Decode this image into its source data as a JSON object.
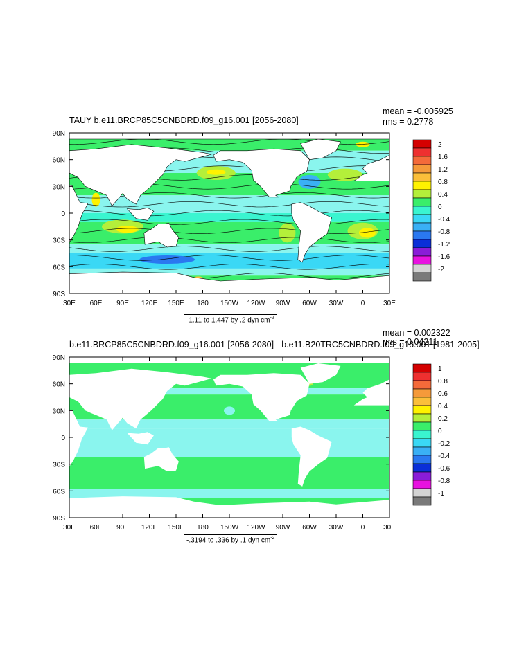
{
  "panels": [
    {
      "title": "TAUY b.e11.BRCP85C5CNBDRD.f09_g16.001 [2056-2080]",
      "mean": "mean = -0.005925",
      "rms": "rms = 0.2778",
      "range_note": "-1.11 to 1.447 by .2 dyn cm",
      "range_note_sup": "-2",
      "legend_labels": [
        "2",
        "1.6",
        "1.2",
        "0.8",
        "0.4",
        "0",
        "-0.4",
        "-0.8",
        "-1.2",
        "-1.6",
        "-2"
      ]
    },
    {
      "title": "b.e11.BRCP85C5CNBDRD.f09_g16.001 [2056-2080] - b.e11.B20TRC5CNBDRD.f09_g16.001 [1981-2005]",
      "mean": "mean = 0.002322",
      "rms": "rms = 0.04211",
      "range_note": "-.3194 to .336 by .1 dyn cm",
      "range_note_sup": "-2",
      "legend_labels": [
        "1",
        "0.8",
        "0.6",
        "0.4",
        "0.2",
        "0",
        "-0.2",
        "-0.4",
        "-0.6",
        "-0.8",
        "-1"
      ]
    }
  ],
  "chart_data": {
    "type": "heatmap",
    "x_tick_labels": [
      "30E",
      "60E",
      "90E",
      "120E",
      "150E",
      "180",
      "150W",
      "120W",
      "90W",
      "60W",
      "30W",
      "0",
      "30E"
    ],
    "y_tick_labels": [
      "90N",
      "60N",
      "30N",
      "0",
      "30S",
      "60S",
      "90S"
    ],
    "xlim": [
      30,
      390
    ],
    "ylim": [
      -90,
      90
    ],
    "colormap": [
      "#d40000",
      "#ee3030",
      "#f46a3a",
      "#f59a3a",
      "#fbbf3a",
      "#fff200",
      "#b4ef3a",
      "#3aee6a",
      "#3af5d0",
      "#3ad8f5",
      "#3ab0f5",
      "#2a78f0",
      "#0a2fd8",
      "#8a1cd8",
      "#e812e0",
      "#d4d4d4",
      "#7a7a7a"
    ],
    "land_color": "#ffffff",
    "grid": false
  }
}
